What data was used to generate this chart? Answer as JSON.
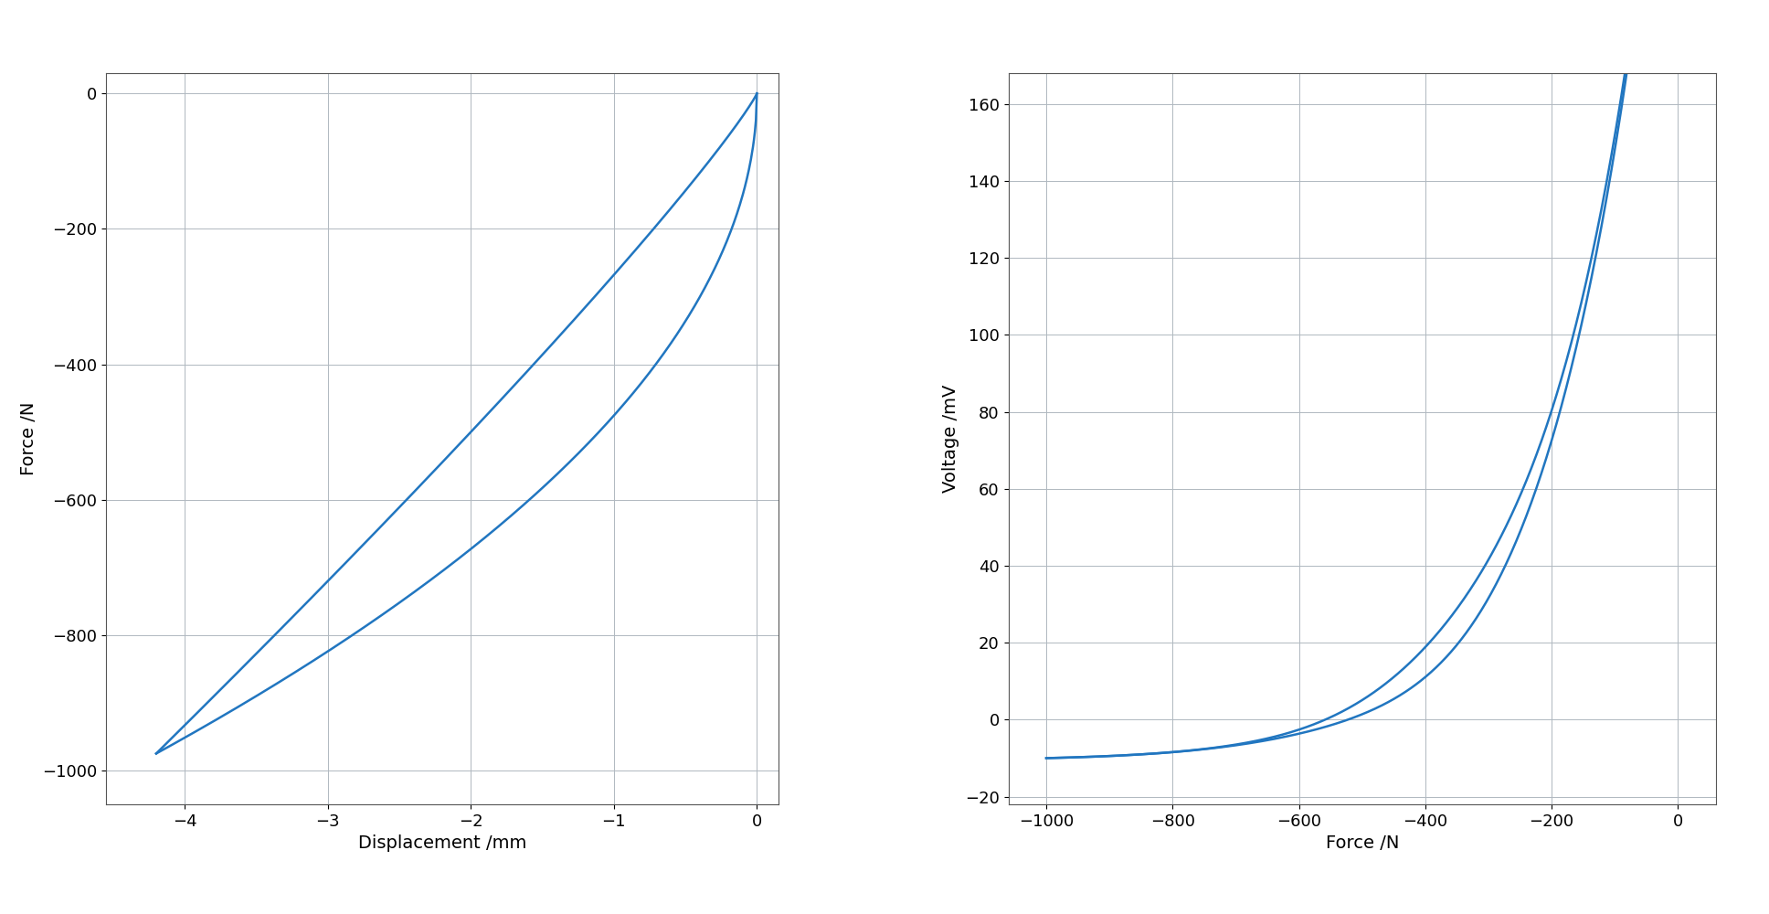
{
  "line_color": "#2176C0",
  "line_width": 1.8,
  "background_color": "#ffffff",
  "grid_color": "#b0b8c0",
  "grid_linewidth": 0.7,
  "plot1": {
    "xlabel": "Displacement /mm",
    "ylabel": "Force /N",
    "xlim": [
      -4.55,
      0.15
    ],
    "ylim": [
      -1050,
      30
    ],
    "xticks": [
      -4,
      -3,
      -2,
      -1,
      0
    ],
    "yticks": [
      0,
      -200,
      -400,
      -600,
      -800,
      -1000
    ]
  },
  "plot2": {
    "xlabel": "Force /N",
    "ylabel": "Voltage /mV",
    "xlim": [
      -1060,
      60
    ],
    "ylim": [
      -22,
      168
    ],
    "xticks": [
      -1000,
      -800,
      -600,
      -400,
      -200,
      0
    ],
    "yticks": [
      -20,
      0,
      20,
      40,
      60,
      80,
      100,
      120,
      140,
      160
    ]
  }
}
